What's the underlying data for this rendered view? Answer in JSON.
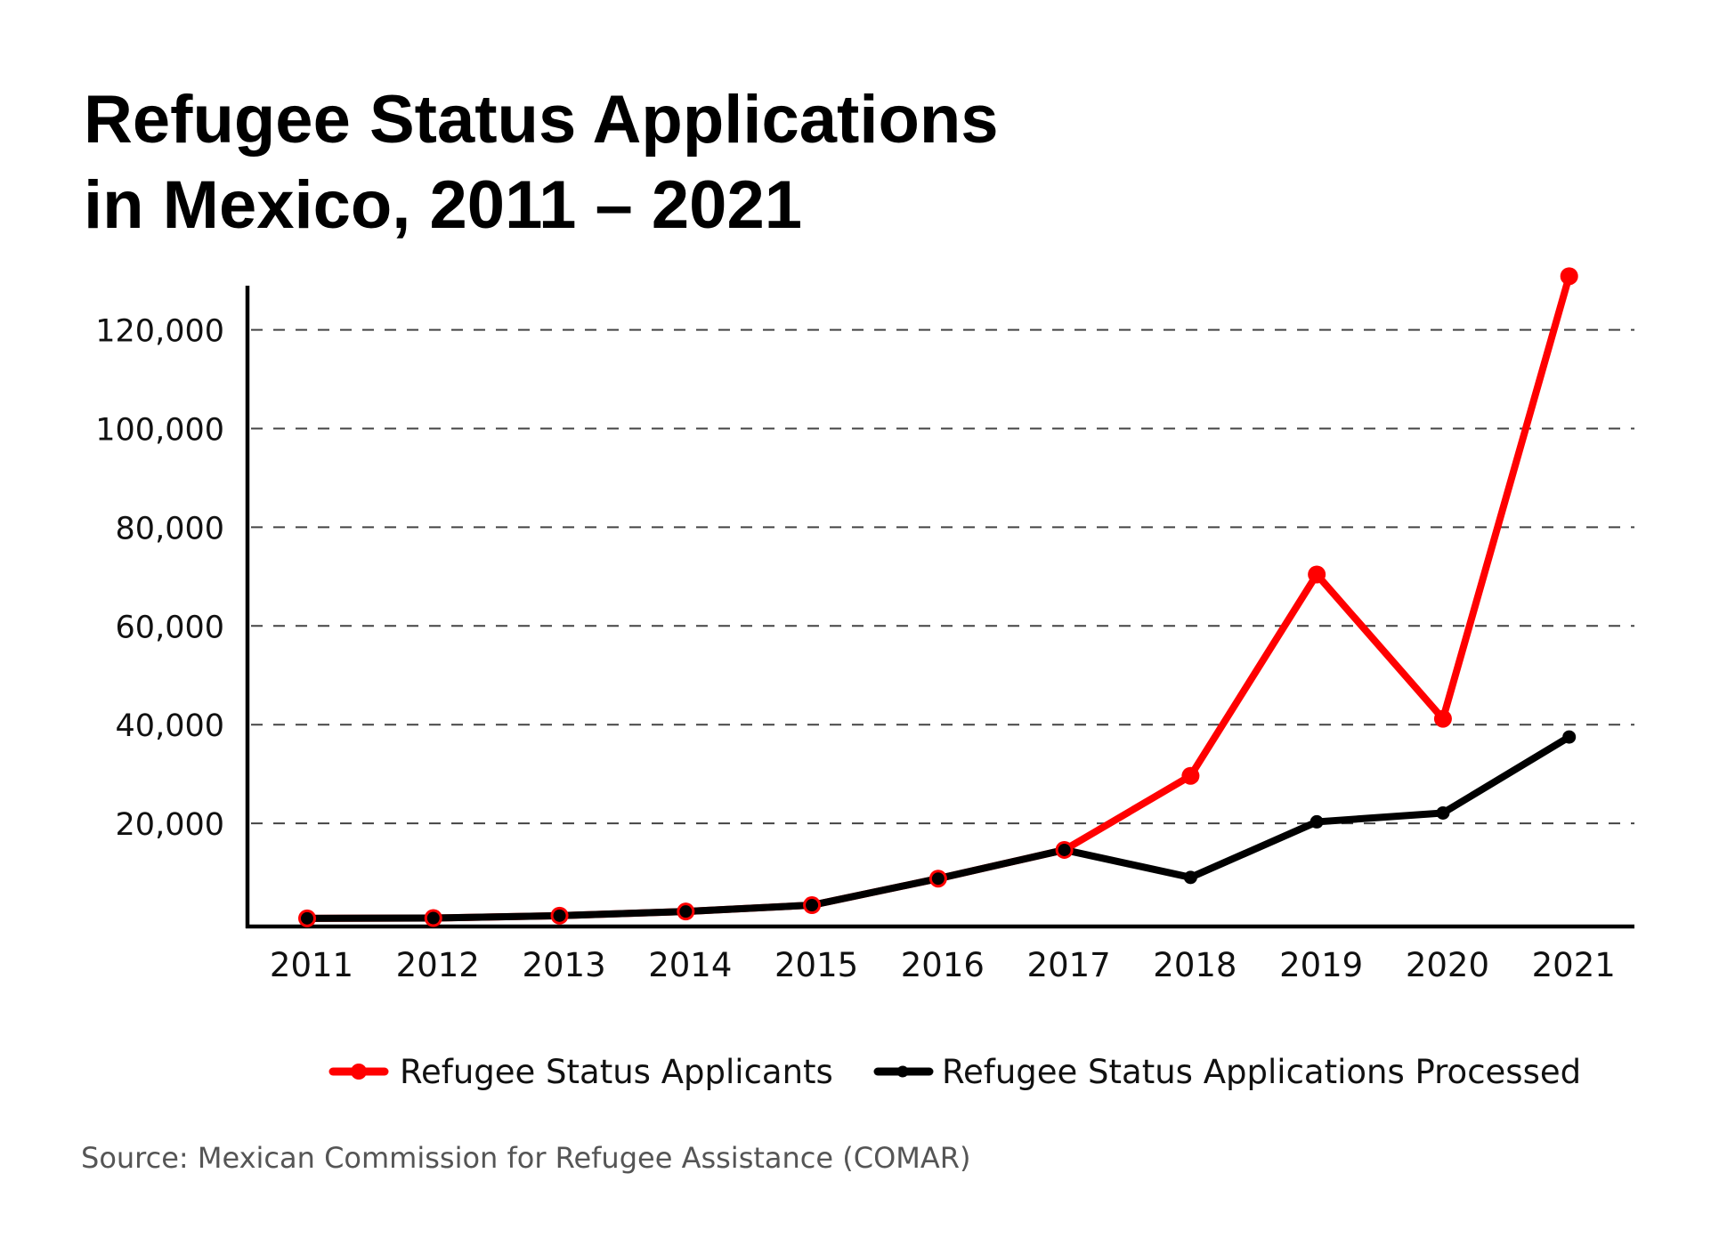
{
  "chart_data": {
    "type": "line",
    "title": "Refugee Status Applications in Mexico, 2011 – 2021",
    "title_lines": [
      "Refugee Status Applications",
      "in Mexico, 2011 – 2021"
    ],
    "xlabel": "",
    "ylabel": "",
    "categories": [
      "2011",
      "2012",
      "2013",
      "2014",
      "2015",
      "2016",
      "2017",
      "2018",
      "2019",
      "2020",
      "2021"
    ],
    "series": [
      {
        "name": "Refugee Status Applicants",
        "color": "#ff0000",
        "values": [
          752,
          811,
          1296,
          2137,
          3424,
          8796,
          14619,
          29623,
          70427,
          41195,
          130863
        ]
      },
      {
        "name": "Refugee Status Applications Processed",
        "color": "#000000",
        "values": [
          752,
          811,
          1296,
          2137,
          3424,
          8796,
          14619,
          9050,
          20300,
          22100,
          37500
        ]
      }
    ],
    "ylim": [
      0,
      130000
    ],
    "yticks": [
      20000,
      40000,
      60000,
      80000,
      100000,
      120000
    ],
    "ytick_labels": [
      "20,000",
      "40,000",
      "60,000",
      "80,000",
      "100,000",
      "120,000"
    ],
    "grid": "horizontal dashed",
    "legend_position": "bottom-center",
    "source": "Source: Mexican Commission for Refugee Assistance (COMAR)"
  }
}
